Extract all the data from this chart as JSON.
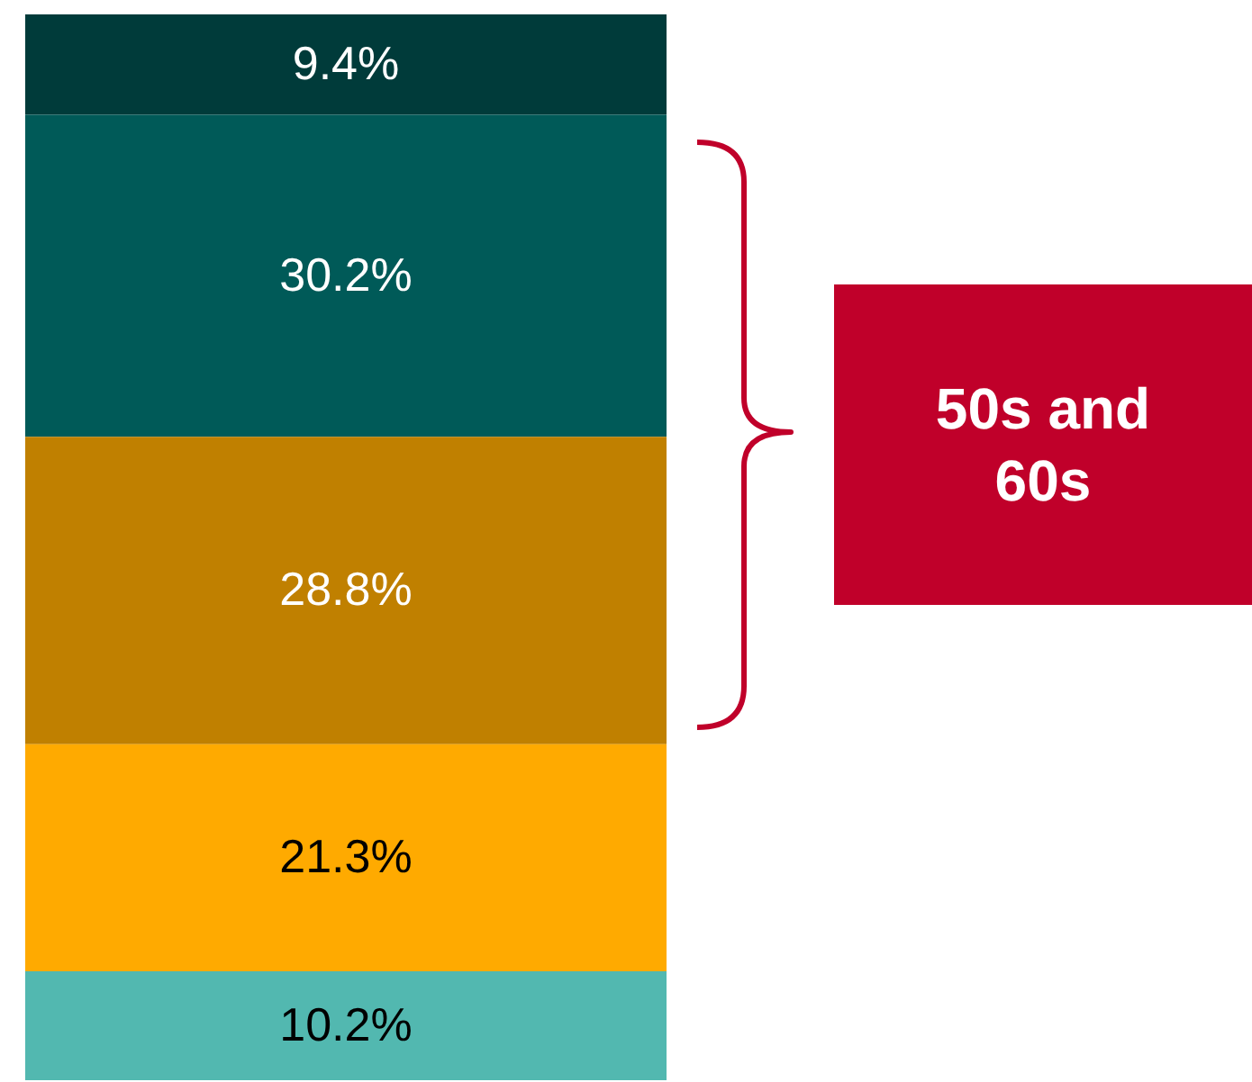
{
  "chart_data": {
    "type": "bar",
    "stacked": true,
    "categories": [
      null
    ],
    "series": [
      {
        "color": "#52b8b0",
        "values": [
          10.2
        ],
        "value_labels": [
          "10.2%"
        ]
      },
      {
        "color": "#ffaa00",
        "values": [
          21.3
        ],
        "value_labels": [
          "21.3%"
        ]
      },
      {
        "color": "#c08000",
        "values": [
          28.8
        ],
        "value_labels": [
          "28.8%"
        ]
      },
      {
        "color": "#005a58",
        "values": [
          30.2
        ],
        "value_labels": [
          "30.2%"
        ]
      },
      {
        "color": "#003b3a",
        "values": [
          9.4
        ],
        "value_labels": [
          "9.4%"
        ]
      }
    ],
    "annotations": [
      "50s and 60s"
    ]
  }
}
